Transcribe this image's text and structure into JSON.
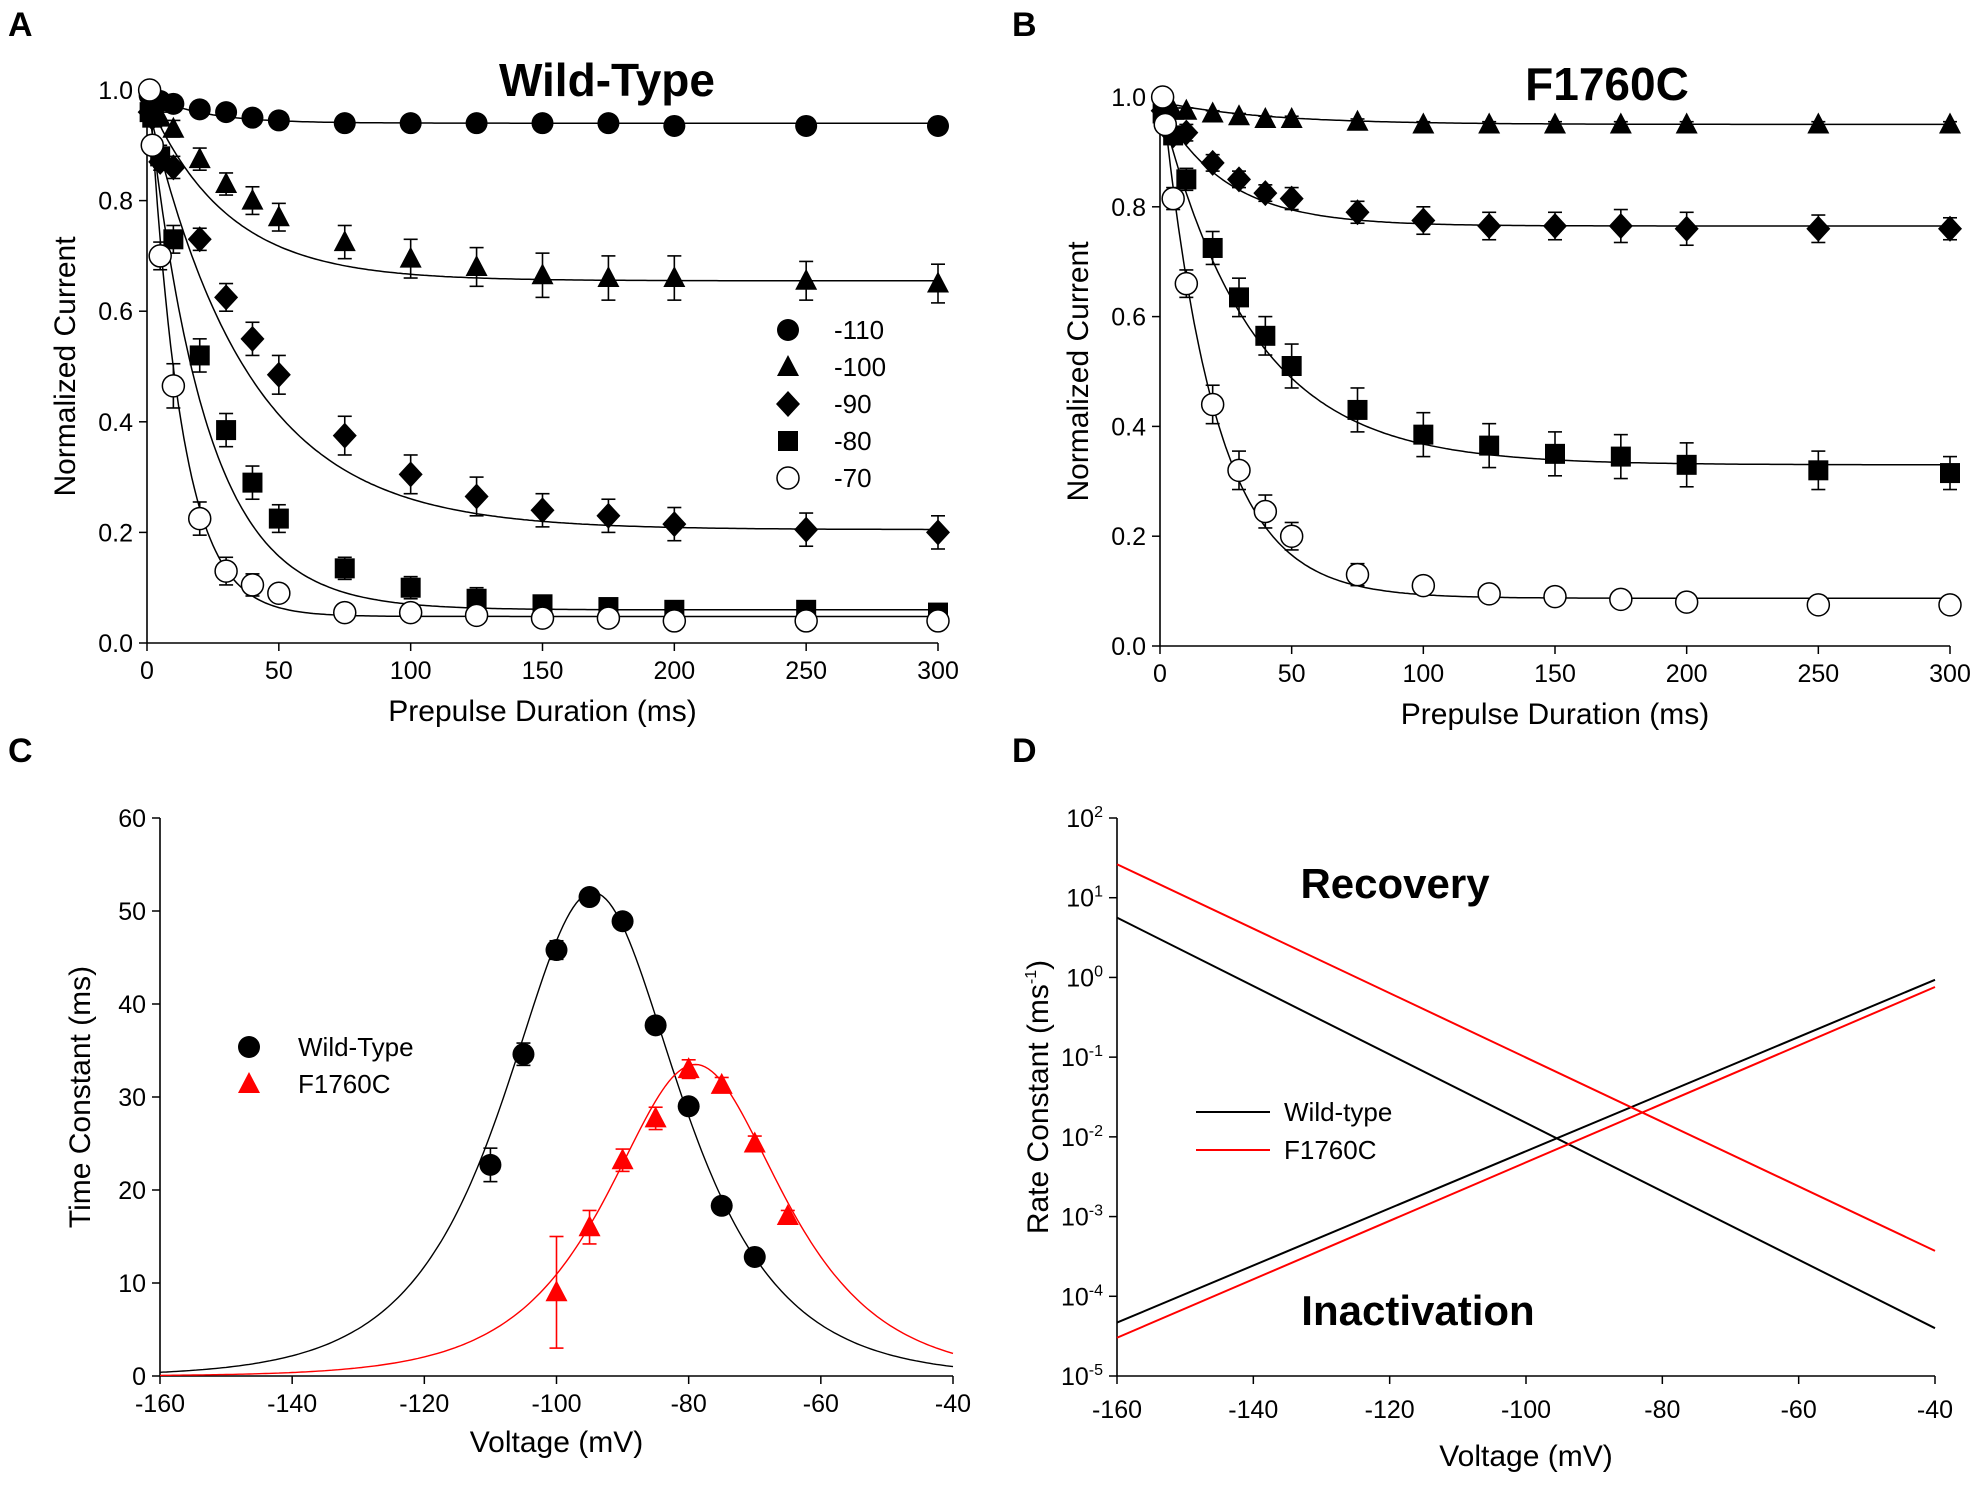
{
  "chart_data": [
    {
      "panel": "A",
      "type": "scatter",
      "title": "Wild-Type",
      "xlabel": "Prepulse Duration (ms)",
      "ylabel": "Normalized Current",
      "xlim": [
        0,
        300
      ],
      "ylim": [
        0,
        1.0
      ],
      "xticks": [
        "0",
        "50",
        "100",
        "150",
        "200",
        "250",
        "300"
      ],
      "yticks": [
        "0.0",
        "0.2",
        "0.4",
        "0.6",
        "0.8",
        "1.0"
      ],
      "x": [
        1,
        2,
        5,
        10,
        20,
        30,
        40,
        50,
        75,
        100,
        125,
        150,
        175,
        200,
        250,
        300
      ],
      "series": [
        {
          "name": "-110",
          "marker": "circle",
          "values": [
            0.99,
            0.985,
            0.98,
            0.975,
            0.965,
            0.96,
            0.95,
            0.945,
            0.94,
            0.94,
            0.94,
            0.94,
            0.94,
            0.935,
            0.935,
            0.935
          ],
          "err": [
            0.01,
            0.01,
            0.01,
            0.01,
            0.01,
            0.01,
            0.01,
            0.01,
            0.01,
            0.01,
            0.01,
            0.01,
            0.01,
            0.01,
            0.01,
            0.01
          ]
        },
        {
          "name": "-100",
          "marker": "triangle",
          "values": [
            0.975,
            0.97,
            0.95,
            0.93,
            0.875,
            0.83,
            0.8,
            0.77,
            0.725,
            0.695,
            0.68,
            0.665,
            0.66,
            0.66,
            0.655,
            0.65
          ],
          "err": [
            0.01,
            0.01,
            0.01,
            0.015,
            0.02,
            0.02,
            0.025,
            0.025,
            0.03,
            0.035,
            0.035,
            0.04,
            0.04,
            0.04,
            0.035,
            0.035
          ]
        },
        {
          "name": "-90",
          "marker": "diamond",
          "values": [
            0.96,
            0.95,
            0.87,
            0.86,
            0.73,
            0.625,
            0.55,
            0.485,
            0.375,
            0.305,
            0.265,
            0.24,
            0.23,
            0.215,
            0.205,
            0.2
          ],
          "err": [
            0.01,
            0.01,
            0.015,
            0.02,
            0.02,
            0.025,
            0.03,
            0.035,
            0.035,
            0.035,
            0.035,
            0.03,
            0.03,
            0.03,
            0.03,
            0.03
          ]
        },
        {
          "name": "-80",
          "marker": "square",
          "values": [
            0.96,
            0.95,
            0.88,
            0.73,
            0.52,
            0.385,
            0.29,
            0.225,
            0.135,
            0.1,
            0.08,
            0.07,
            0.065,
            0.06,
            0.06,
            0.055
          ],
          "err": [
            0.01,
            0.01,
            0.02,
            0.025,
            0.03,
            0.03,
            0.03,
            0.025,
            0.02,
            0.02,
            0.02,
            0.015,
            0.015,
            0.01,
            0.01,
            0.01
          ]
        },
        {
          "name": "-70",
          "marker": "open-circle",
          "values": [
            1.0,
            0.9,
            0.7,
            0.465,
            0.225,
            0.13,
            0.105,
            0.09,
            0.055,
            0.055,
            0.05,
            0.045,
            0.045,
            0.04,
            0.04,
            0.04
          ],
          "err": [
            0.01,
            0.01,
            0.025,
            0.04,
            0.03,
            0.025,
            0.02,
            0.015,
            0.01,
            0.01,
            0.01,
            0.01,
            0.01,
            0.01,
            0.015,
            0.015
          ]
        }
      ],
      "fit_plateaus": [
        0.94,
        0.655,
        0.205,
        0.06,
        0.048
      ],
      "fit_taus": [
        20,
        30,
        38,
        22,
        12
      ]
    },
    {
      "panel": "B",
      "type": "scatter",
      "title": "F1760C",
      "xlabel": "Prepulse Duration (ms)",
      "ylabel": "Normalized Current",
      "xlim": [
        0,
        300
      ],
      "ylim": [
        0,
        1.0
      ],
      "xticks": [
        "0",
        "50",
        "100",
        "150",
        "200",
        "250",
        "300"
      ],
      "yticks": [
        "0.0",
        "0.2",
        "0.4",
        "0.6",
        "0.8",
        "1.0"
      ],
      "x": [
        1,
        2,
        5,
        10,
        20,
        30,
        40,
        50,
        75,
        100,
        125,
        150,
        175,
        200,
        250,
        300
      ],
      "series": [
        {
          "name": "-100",
          "marker": "triangle",
          "values": [
            0.99,
            0.985,
            0.975,
            0.975,
            0.97,
            0.965,
            0.96,
            0.96,
            0.955,
            0.95,
            0.95,
            0.95,
            0.95,
            0.95,
            0.95,
            0.95
          ],
          "err": [
            0.005,
            0.005,
            0.005,
            0.005,
            0.005,
            0.005,
            0.005,
            0.005,
            0.005,
            0.005,
            0.005,
            0.005,
            0.005,
            0.005,
            0.005,
            0.005
          ]
        },
        {
          "name": "-90",
          "marker": "diamond",
          "values": [
            0.975,
            0.965,
            0.93,
            0.935,
            0.88,
            0.85,
            0.825,
            0.815,
            0.79,
            0.775,
            0.765,
            0.765,
            0.765,
            0.76,
            0.76,
            0.76
          ],
          "err": [
            0.01,
            0.01,
            0.01,
            0.015,
            0.015,
            0.015,
            0.015,
            0.02,
            0.02,
            0.025,
            0.025,
            0.025,
            0.03,
            0.03,
            0.025,
            0.02
          ]
        },
        {
          "name": "-80",
          "marker": "square",
          "values": [
            0.97,
            0.96,
            0.93,
            0.85,
            0.725,
            0.635,
            0.565,
            0.51,
            0.43,
            0.385,
            0.365,
            0.35,
            0.345,
            0.33,
            0.32,
            0.315
          ],
          "err": [
            0.01,
            0.01,
            0.015,
            0.02,
            0.03,
            0.035,
            0.035,
            0.04,
            0.04,
            0.04,
            0.04,
            0.04,
            0.04,
            0.04,
            0.035,
            0.03
          ]
        },
        {
          "name": "-70",
          "marker": "open-circle",
          "values": [
            1.0,
            0.95,
            0.815,
            0.66,
            0.44,
            0.32,
            0.245,
            0.2,
            0.13,
            0.11,
            0.095,
            0.09,
            0.085,
            0.08,
            0.075,
            0.075
          ],
          "err": [
            0.01,
            0.01,
            0.02,
            0.025,
            0.035,
            0.035,
            0.03,
            0.025,
            0.02,
            0.015,
            0.015,
            0.015,
            0.01,
            0.01,
            0.01,
            0.01
          ]
        }
      ],
      "fit_plateaus": [
        0.95,
        0.765,
        0.33,
        0.087
      ],
      "fit_taus": [
        40,
        25,
        35,
        20
      ]
    },
    {
      "panel": "C",
      "type": "scatter",
      "xlabel": "Voltage (mV)",
      "ylabel": "Time Constant (ms)",
      "xlim": [
        -160,
        -40
      ],
      "ylim": [
        0,
        60
      ],
      "xticks": [
        "-160",
        "-140",
        "-120",
        "-100",
        "-80",
        "-60",
        "-40"
      ],
      "yticks": [
        "0",
        "10",
        "20",
        "30",
        "40",
        "50",
        "60"
      ],
      "legend": [
        "Wild-Type",
        "F1760C"
      ],
      "series": [
        {
          "name": "Wild-Type",
          "color": "#000000",
          "marker": "circle",
          "x": [
            -110,
            -105,
            -100,
            -95,
            -90,
            -85,
            -80,
            -75,
            -70
          ],
          "values": [
            22.7,
            34.6,
            45.8,
            51.5,
            48.9,
            37.7,
            29.0,
            18.3,
            12.8
          ],
          "err": [
            1.8,
            1.2,
            1.0,
            0.8,
            0.8,
            0.8,
            0.8,
            0.8,
            0.6
          ],
          "fit_peak": 52,
          "fit_center": -94.5
        },
        {
          "name": "F1760C",
          "color": "#ff0000",
          "marker": "triangle",
          "x": [
            -100,
            -95,
            -90,
            -85,
            -80,
            -75,
            -70,
            -65
          ],
          "values": [
            9.0,
            16.0,
            23.2,
            27.7,
            33.0,
            31.3,
            25.0,
            17.2
          ],
          "err": [
            6.0,
            1.8,
            1.2,
            1.2,
            1.0,
            0.8,
            0.8,
            0.6
          ],
          "fit_peak": 33.5,
          "fit_center": -79
        }
      ]
    },
    {
      "panel": "D",
      "type": "line",
      "xlabel": "Voltage (mV)",
      "ylabel": "Rate Constant (ms",
      "ylabel_sup": "-1",
      "ylabel_end": ")",
      "yscale": "log",
      "xlim": [
        -160,
        -40
      ],
      "ylim_exp": [
        -5,
        2
      ],
      "xticks": [
        "-160",
        "-140",
        "-120",
        "-100",
        "-80",
        "-60",
        "-40"
      ],
      "ytick_base": "10",
      "ytick_exponents": [
        "2",
        "1",
        "0",
        "-1",
        "-2",
        "-3",
        "-4",
        "-5"
      ],
      "annotations": [
        "Recovery",
        "Inactivation"
      ],
      "legend": [
        "Wild-type",
        "F1760C"
      ],
      "series": [
        {
          "name": "Wild-type recovery",
          "color": "#000000",
          "x": [
            -160,
            -40
          ],
          "log10_values": [
            0.75,
            -4.4
          ]
        },
        {
          "name": "Wild-type inactivation",
          "color": "#000000",
          "x": [
            -160,
            -40
          ],
          "log10_values": [
            -4.33,
            -0.03
          ]
        },
        {
          "name": "F1760C recovery",
          "color": "#ff0000",
          "x": [
            -160,
            -40
          ],
          "log10_values": [
            1.42,
            -3.43
          ]
        },
        {
          "name": "F1760C inactivation",
          "color": "#ff0000",
          "x": [
            -160,
            -40
          ],
          "log10_values": [
            -4.52,
            -0.12
          ]
        }
      ]
    }
  ],
  "panel_labels": [
    "A",
    "B",
    "C",
    "D"
  ]
}
